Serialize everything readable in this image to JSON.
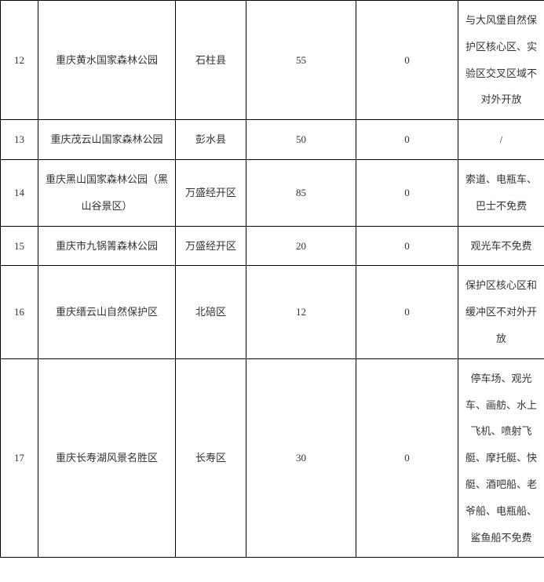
{
  "table": {
    "columns": [
      {
        "key": "idx",
        "width": 48,
        "align": "center"
      },
      {
        "key": "name",
        "width": 175,
        "align": "center"
      },
      {
        "key": "area",
        "width": 90,
        "align": "center"
      },
      {
        "key": "v1",
        "width": 140,
        "align": "center"
      },
      {
        "key": "v2",
        "width": 130,
        "align": "center"
      },
      {
        "key": "note",
        "width": 110,
        "align": "center"
      }
    ],
    "rows": [
      {
        "idx": "12",
        "name": "重庆黄水国家森林公园",
        "area": "石柱县",
        "v1": "55",
        "v2": "0",
        "note": "与大风堡自然保护区核心区、实验区交叉区域不对外开放"
      },
      {
        "idx": "13",
        "name": "重庆茂云山国家森林公园",
        "area": "彭水县",
        "v1": "50",
        "v2": "0",
        "note": "/"
      },
      {
        "idx": "14",
        "name": "重庆黑山国家森林公园（黑山谷景区）",
        "area": "万盛经开区",
        "v1": "85",
        "v2": "0",
        "note": "索道、电瓶车、巴士不免费"
      },
      {
        "idx": "15",
        "name": "重庆市九锅箐森林公园",
        "area": "万盛经开区",
        "v1": "20",
        "v2": "0",
        "note": "观光车不免费"
      },
      {
        "idx": "16",
        "name": "重庆缙云山自然保护区",
        "area": "北碚区",
        "v1": "12",
        "v2": "0",
        "note": "保护区核心区和缓冲区不对外开放"
      },
      {
        "idx": "17",
        "name": "重庆长寿湖风景名胜区",
        "area": "长寿区",
        "v1": "30",
        "v2": "0",
        "note": "停车场、观光车、画舫、水上飞机、喷射飞艇、摩托艇、快艇、酒吧船、老爷船、电瓶船、鲨鱼船不免费"
      }
    ],
    "border_color": "#000000",
    "background_color": "#ffffff",
    "text_color": "#333333",
    "font_size": 13,
    "line_height": 2.6
  }
}
